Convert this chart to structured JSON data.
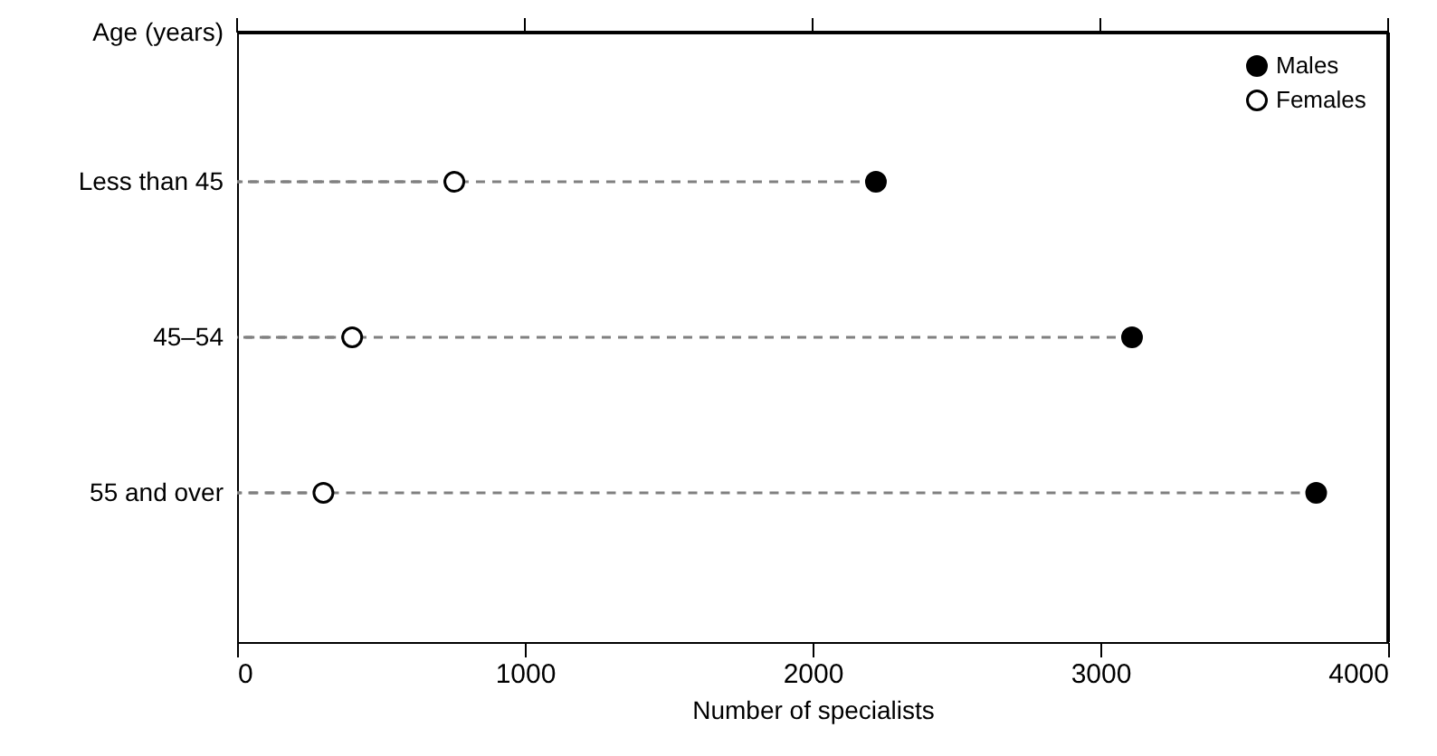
{
  "chart_data": {
    "type": "lollipop",
    "orientation": "horizontal",
    "ylabel": "Age (years)",
    "xlabel": "Number of specialists",
    "categories": [
      "Less than 45",
      "45–54",
      "55 and over"
    ],
    "series": [
      {
        "name": "Males",
        "color": "#000000",
        "values": [
          2220,
          3110,
          3750
        ]
      },
      {
        "name": "Females",
        "color": "#ffffff",
        "values": [
          755,
          400,
          300
        ]
      }
    ],
    "xlim": [
      0,
      4000
    ],
    "xticks": [
      0,
      1000,
      2000,
      3000,
      4000
    ],
    "legend": "top right",
    "marker": "circle",
    "line_style": "dashed",
    "grid": false
  }
}
